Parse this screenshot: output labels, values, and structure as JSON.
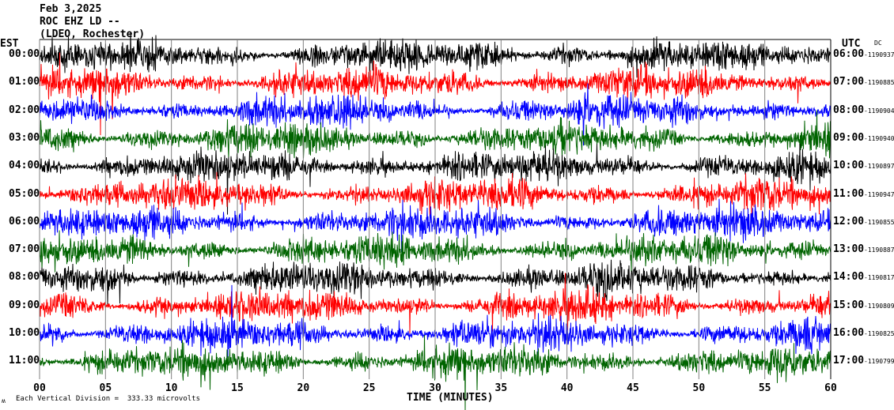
{
  "header": {
    "date": "Feb 3,2025",
    "station": "ROC EHZ LD --",
    "network": "(LDEO, Rochester)"
  },
  "left_axis_label": "EST",
  "right_axis_label": "UTC",
  "dc_label": "DC",
  "footer": {
    "icon": "seismo-logo-icon",
    "scale_text": "Each Vertical Division =  333.33 microvolts"
  },
  "chart_data": {
    "type": "line",
    "xlabel": "TIME (MINUTES)",
    "xlim": [
      0,
      60
    ],
    "x_ticks": [
      "00",
      "05",
      "10",
      "15",
      "20",
      "25",
      "30",
      "35",
      "40",
      "45",
      "50",
      "55",
      "60"
    ],
    "grid": "vertical every 5 minutes",
    "trace_colors": [
      "#000000",
      "#ff0000",
      "#0000ff",
      "#006400"
    ],
    "rows": [
      {
        "est": "00:00",
        "utc": "06:00",
        "dc": "-1190937"
      },
      {
        "est": "01:00",
        "utc": "07:00",
        "dc": "-1190885"
      },
      {
        "est": "02:00",
        "utc": "08:00",
        "dc": "-1190904"
      },
      {
        "est": "03:00",
        "utc": "09:00",
        "dc": "-1190940"
      },
      {
        "est": "04:00",
        "utc": "10:00",
        "dc": "-1190897"
      },
      {
        "est": "05:00",
        "utc": "11:00",
        "dc": "-1190947"
      },
      {
        "est": "06:00",
        "utc": "12:00",
        "dc": "-1190855"
      },
      {
        "est": "07:00",
        "utc": "13:00",
        "dc": "-1190887"
      },
      {
        "est": "08:00",
        "utc": "14:00",
        "dc": "-1190817"
      },
      {
        "est": "09:00",
        "utc": "15:00",
        "dc": "-1190809"
      },
      {
        "est": "10:00",
        "utc": "16:00",
        "dc": "-1190825"
      },
      {
        "est": "11:00",
        "utc": "17:00",
        "dc": "-1190799"
      }
    ]
  }
}
